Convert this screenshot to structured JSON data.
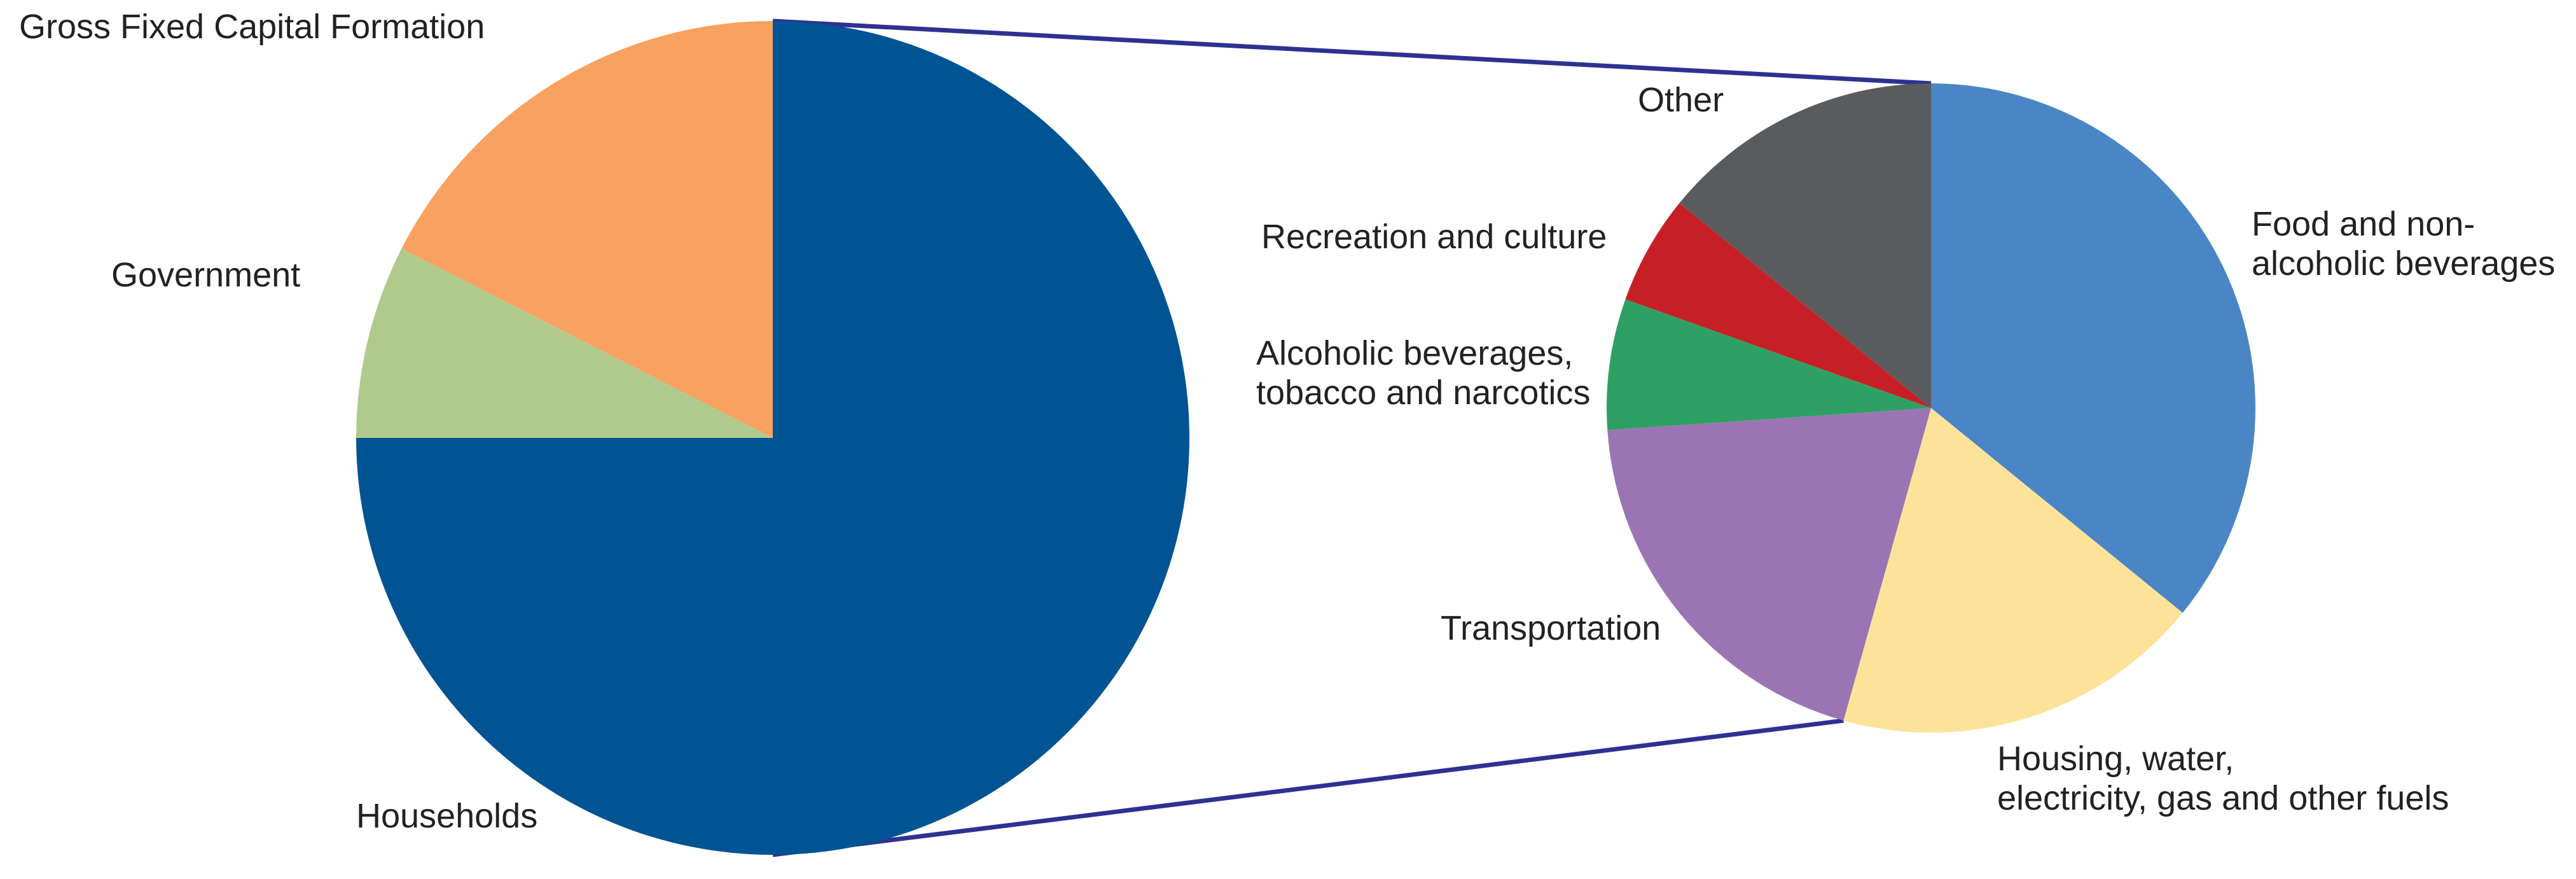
{
  "chart_data": [
    {
      "type": "pie",
      "title": "",
      "categories": [
        "Households",
        "Government",
        "Gross Fixed Capital Formation"
      ],
      "values": [
        75,
        7.5,
        17.5
      ],
      "unit": "%",
      "colors": [
        "#005493",
        "#b0ca8e",
        "#f8a160"
      ],
      "labels": [
        {
          "name": "Households",
          "lines": [
            "Households"
          ]
        },
        {
          "name": "Government",
          "lines": [
            "Government"
          ]
        },
        {
          "name": "Gross Fixed Capital Formation",
          "lines": [
            "Gross Fixed Capital Formation"
          ]
        }
      ],
      "exploded_category": "Households"
    },
    {
      "type": "pie",
      "title": "",
      "categories": [
        "Food and non-alcoholic beverages",
        "Housing, water, electricity, gas and other fuels",
        "Transportation",
        "Alcoholic beverages, tobacco and narcotics",
        "Recreation and culture",
        "Other"
      ],
      "values": [
        33,
        17,
        18,
        6,
        5,
        13
      ],
      "unit": "%",
      "colors": [
        "#4a86c5",
        "#fde39a",
        "#9b75b3",
        "#2fa063",
        "#c62026",
        "#5a5b5d"
      ],
      "labels": [
        {
          "name": "Food and non-alcoholic beverages",
          "lines": [
            "Food and non-",
            "alcoholic beverages"
          ]
        },
        {
          "name": "Housing, water, electricity, gas and other fuels",
          "lines": [
            "Housing, water,",
            "electricity, gas and other fuels"
          ]
        },
        {
          "name": "Transportation",
          "lines": [
            "Transportation"
          ]
        },
        {
          "name": "Alcoholic beverages, tobacco and narcotics",
          "lines": [
            "Alcoholic beverages,",
            "tobacco and narcotics"
          ]
        },
        {
          "name": "Recreation and culture",
          "lines": [
            "Recreation and culture"
          ]
        },
        {
          "name": "Other",
          "lines": [
            "Other"
          ]
        }
      ]
    }
  ],
  "connector_color": "#2e3192"
}
